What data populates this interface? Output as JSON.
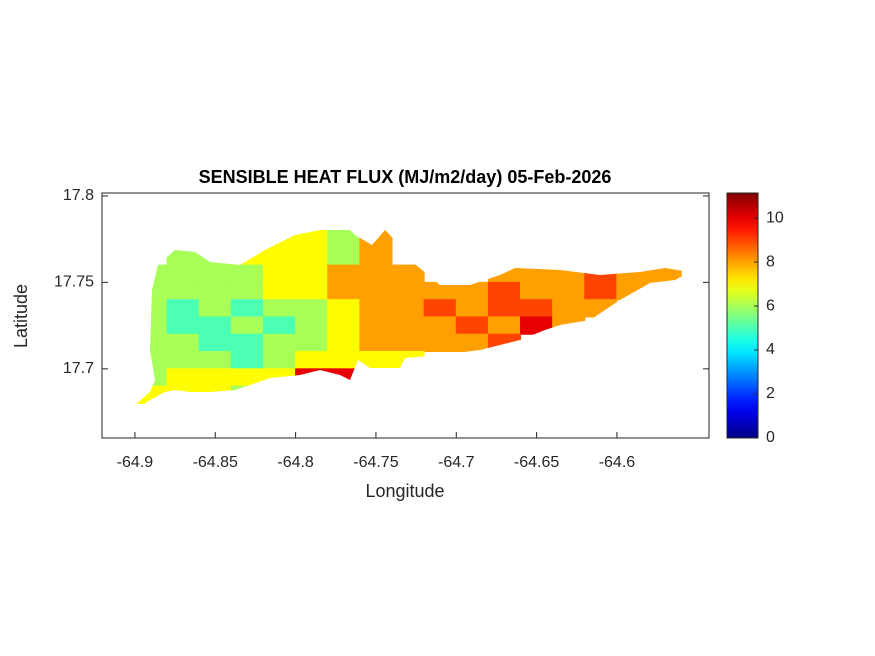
{
  "chart_data": {
    "type": "heatmap",
    "title": "SENSIBLE HEAT FLUX (MJ/m2/day) 05-Feb-2026",
    "xlabel": "Longitude",
    "ylabel": "Latitude",
    "colormap": "jet",
    "x": [
      -64.89,
      -64.87,
      -64.85,
      -64.83,
      -64.81,
      -64.79,
      -64.77,
      -64.75,
      -64.73,
      -64.71,
      -64.69,
      -64.67,
      -64.65,
      -64.63,
      -64.61,
      -64.59,
      -64.57
    ],
    "y": [
      17.775,
      17.765,
      17.755,
      17.745,
      17.735,
      17.725,
      17.715,
      17.705,
      17.695,
      17.685
    ],
    "values": [
      [
        null,
        null,
        null,
        null,
        7,
        7,
        6,
        8,
        null,
        null,
        null,
        null,
        null,
        null,
        null,
        null,
        null
      ],
      [
        null,
        6,
        6,
        7,
        7,
        7,
        6,
        8,
        null,
        null,
        null,
        null,
        null,
        null,
        null,
        null,
        null
      ],
      [
        6,
        6,
        6,
        6,
        7,
        7,
        8,
        8,
        8,
        null,
        null,
        8,
        8,
        8,
        9,
        8,
        8
      ],
      [
        6,
        6,
        6,
        6,
        7,
        7,
        8,
        8,
        8,
        8,
        8,
        9,
        8,
        8,
        9,
        8,
        null
      ],
      [
        6,
        5,
        6,
        5,
        6,
        6,
        7,
        8,
        8,
        9,
        8,
        9,
        9,
        8,
        8,
        null,
        null
      ],
      [
        6,
        5,
        5,
        6,
        5,
        6,
        7,
        8,
        8,
        8,
        9,
        8,
        10,
        8,
        null,
        null,
        null
      ],
      [
        6,
        6,
        5,
        5,
        6,
        6,
        7,
        8,
        8,
        8,
        8,
        9,
        null,
        null,
        null,
        null,
        null
      ],
      [
        6,
        6,
        6,
        5,
        6,
        7,
        7,
        7,
        7,
        null,
        null,
        null,
        null,
        null,
        null,
        null,
        null
      ],
      [
        6,
        7,
        7,
        7,
        7,
        10,
        10,
        null,
        null,
        null,
        null,
        null,
        null,
        null,
        null,
        null,
        null
      ],
      [
        7,
        7,
        7,
        6,
        null,
        null,
        null,
        null,
        null,
        null,
        null,
        null,
        null,
        null,
        null,
        null,
        null
      ]
    ],
    "xlim": [
      -64.9205,
      -64.5427
    ],
    "xticks": [
      -64.9,
      -64.85,
      -64.8,
      -64.75,
      -64.7,
      -64.65,
      -64.6
    ],
    "ylim": [
      17.66,
      17.8017
    ],
    "yticks": [
      17.7,
      17.75,
      17.8
    ],
    "clim": [
      0,
      11.14
    ],
    "cticks": [
      0,
      2,
      4,
      6,
      8,
      10
    ]
  }
}
